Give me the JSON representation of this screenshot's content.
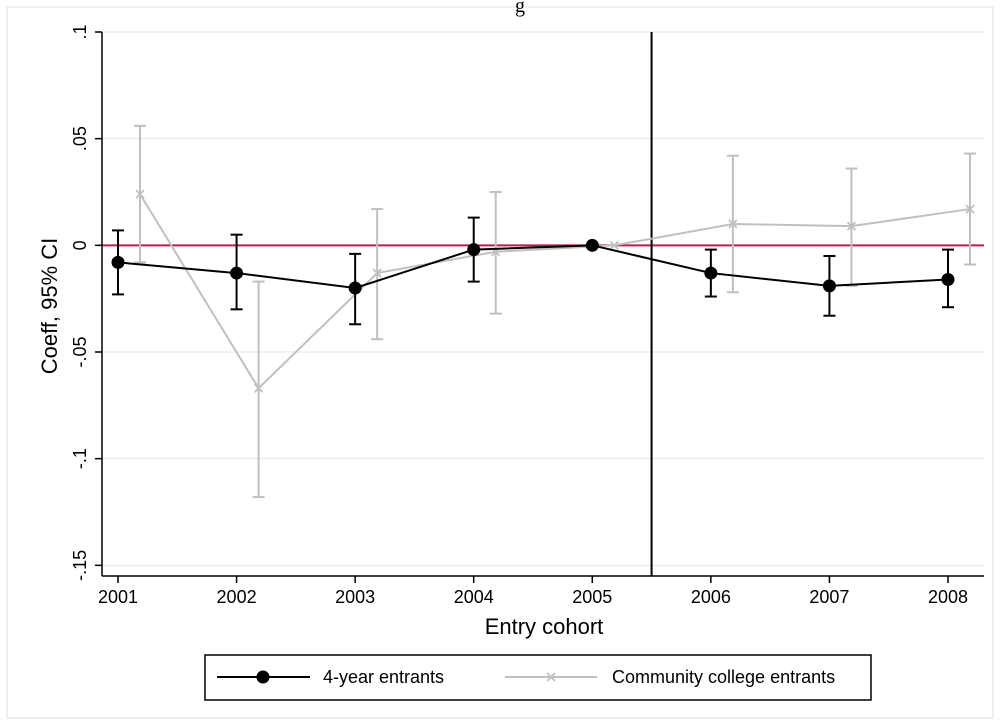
{
  "chart_data": {
    "type": "line",
    "title": "g",
    "xlabel": "Entry cohort",
    "ylabel": "Coeff, 95% CI",
    "x": [
      2001,
      2002,
      2003,
      2004,
      2005,
      2006,
      2007,
      2008
    ],
    "x_tick_labels": [
      "2001",
      "2002",
      "2003",
      "2004",
      "2005",
      "2006",
      "2007",
      "2008"
    ],
    "ylim": [
      -0.155,
      0.1
    ],
    "y_ticks": [
      0.1,
      0.05,
      0,
      -0.05,
      -0.1,
      -0.15
    ],
    "y_tick_labels": [
      ".1",
      ".05",
      "0",
      "-.05",
      "-.1",
      "-.15"
    ],
    "reference_hline": 0,
    "reference_vline": 2005.5,
    "grid": true,
    "legend_position": "bottom",
    "series": [
      {
        "name": "4-year entrants",
        "color": "#000000",
        "marker": "circle",
        "values": [
          -0.008,
          -0.013,
          -0.02,
          -0.002,
          0.0,
          -0.013,
          -0.019,
          -0.016
        ],
        "ci_low": [
          -0.023,
          -0.03,
          -0.037,
          -0.017,
          0.0,
          -0.024,
          -0.033,
          -0.029
        ],
        "ci_high": [
          0.007,
          0.005,
          -0.004,
          0.013,
          0.0,
          -0.002,
          -0.005,
          -0.002
        ]
      },
      {
        "name": "Community college entrants",
        "color": "#c0c0c0",
        "marker": "x",
        "values": [
          0.024,
          -0.067,
          -0.013,
          -0.003,
          0.0,
          0.01,
          0.009,
          0.017
        ],
        "ci_low": [
          -0.008,
          -0.118,
          -0.044,
          -0.032,
          0.0,
          -0.022,
          -0.019,
          -0.009
        ],
        "ci_high": [
          0.056,
          -0.017,
          0.017,
          0.025,
          0.0,
          0.042,
          0.036,
          0.043
        ]
      }
    ],
    "colors": {
      "reference_line": "#b0204a",
      "vline": "#000000",
      "grid": "#e8efef"
    }
  }
}
